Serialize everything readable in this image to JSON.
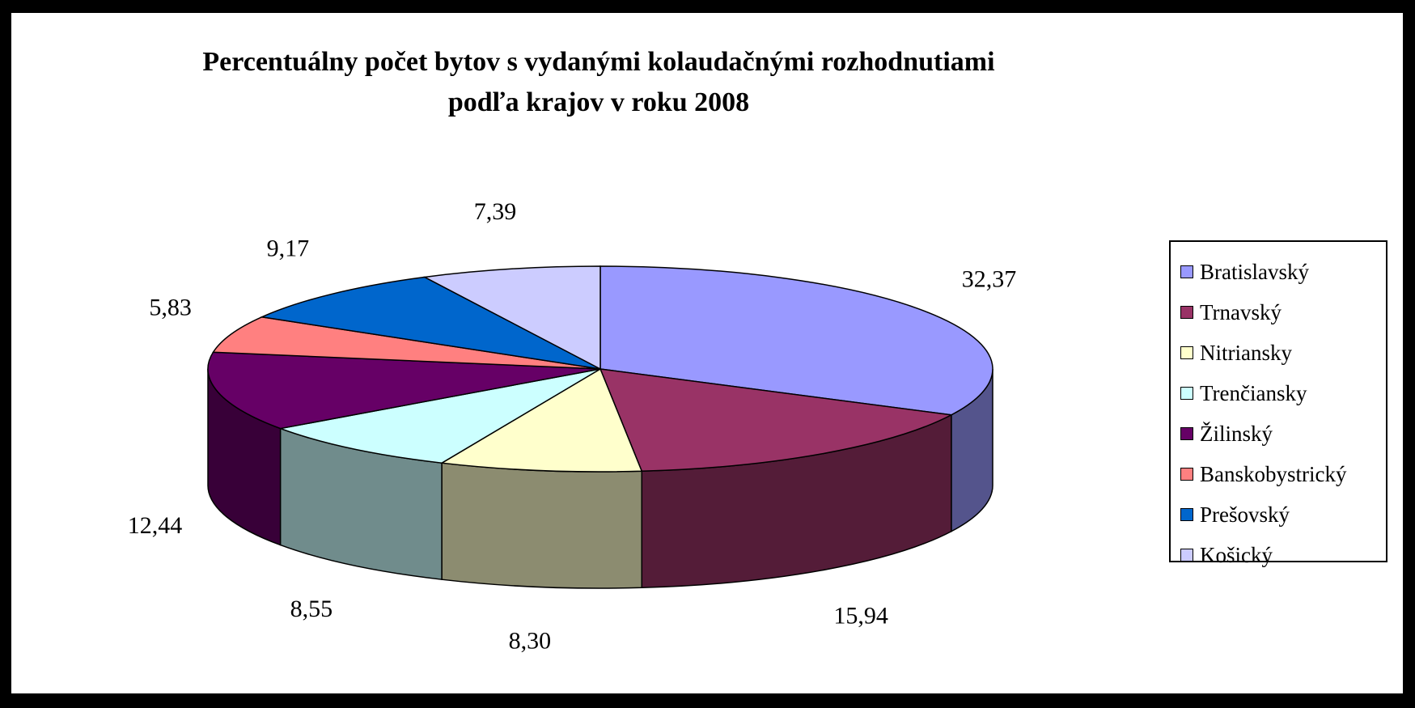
{
  "chart_data": {
    "type": "pie",
    "title": "Percentuálny počet bytov s vydanými kolaudačnými rozhodnutiami podľa krajov v roku 2008",
    "title_lines": [
      "Percentuálny počet bytov s vydanými kolaudačnými rozhodnutiami",
      "podľa krajov v roku 2008"
    ],
    "legend_position": "right",
    "three_d": true,
    "slices": [
      {
        "name": "Bratislavský",
        "value": 32.37,
        "label": "32,37",
        "color": "#9999ff"
      },
      {
        "name": "Trnavský",
        "value": 15.94,
        "label": "15,94",
        "color": "#993366"
      },
      {
        "name": "Nitriansky",
        "value": 8.3,
        "label": "8,30",
        "color": "#ffffcc"
      },
      {
        "name": "Trenčiansky",
        "value": 8.55,
        "label": "8,55",
        "color": "#ccffff"
      },
      {
        "name": "Žilinský",
        "value": 12.44,
        "label": "12,44",
        "color": "#660066"
      },
      {
        "name": "Banskobystrický",
        "value": 5.83,
        "label": "5,83",
        "color": "#ff8080"
      },
      {
        "name": "Prešovský",
        "value": 9.17,
        "label": "9,17",
        "color": "#0066cc"
      },
      {
        "name": "Košický",
        "value": 7.39,
        "label": "7,39",
        "color": "#ccccff"
      }
    ]
  }
}
